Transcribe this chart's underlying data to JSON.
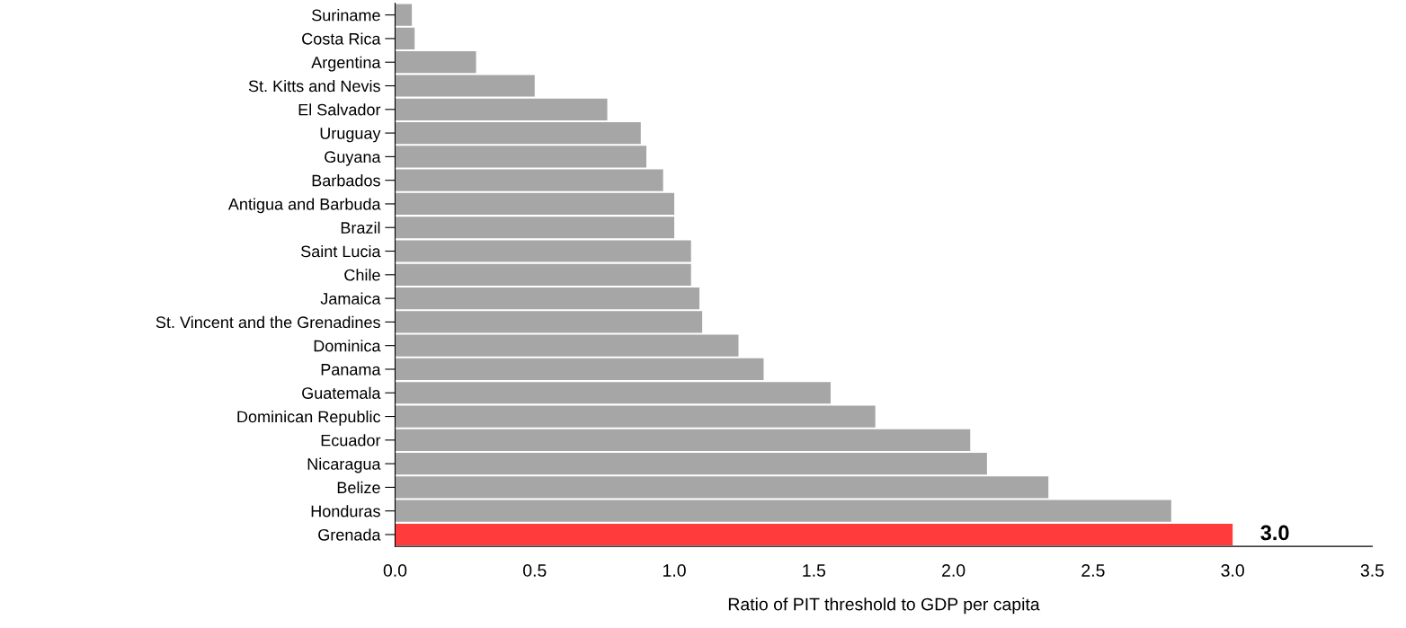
{
  "chart_data": {
    "type": "bar",
    "orientation": "horizontal",
    "xlabel": "Ratio of PIT threshold to GDP per capita",
    "categories": [
      "Suriname",
      "Costa Rica",
      "Argentina",
      "St. Kitts and Nevis",
      "El Salvador",
      "Uruguay",
      "Guyana",
      "Barbados",
      "Antigua and Barbuda",
      "Brazil",
      "Saint Lucia",
      "Chile",
      "Jamaica",
      "St. Vincent and the Grenadines",
      "Dominica",
      "Panama",
      "Guatemala",
      "Dominican Republic",
      "Ecuador",
      "Nicaragua",
      "Belize",
      "Honduras",
      "Grenada"
    ],
    "values": [
      0.06,
      0.07,
      0.29,
      0.5,
      0.76,
      0.88,
      0.9,
      0.96,
      1.0,
      1.0,
      1.06,
      1.06,
      1.09,
      1.1,
      1.23,
      1.32,
      1.56,
      1.72,
      2.06,
      2.12,
      2.34,
      2.78,
      3.0
    ],
    "colors": [
      "#a6a6a6",
      "#a6a6a6",
      "#a6a6a6",
      "#a6a6a6",
      "#a6a6a6",
      "#a6a6a6",
      "#a6a6a6",
      "#a6a6a6",
      "#a6a6a6",
      "#a6a6a6",
      "#a6a6a6",
      "#a6a6a6",
      "#a6a6a6",
      "#a6a6a6",
      "#a6a6a6",
      "#a6a6a6",
      "#a6a6a6",
      "#a6a6a6",
      "#a6a6a6",
      "#a6a6a6",
      "#a6a6a6",
      "#a6a6a6",
      "#ff3b3b"
    ],
    "value_labels": [
      null,
      null,
      null,
      null,
      null,
      null,
      null,
      null,
      null,
      null,
      null,
      null,
      null,
      null,
      null,
      null,
      null,
      null,
      null,
      null,
      null,
      null,
      "3.0"
    ],
    "xlim": [
      0,
      3.5
    ],
    "xticks": [
      {
        "value": 0,
        "label": "0.0"
      },
      {
        "value": 0.5,
        "label": "0.5"
      },
      {
        "value": 1,
        "label": "1.0"
      },
      {
        "value": 1.5,
        "label": "1.5"
      },
      {
        "value": 2,
        "label": "2.0"
      },
      {
        "value": 2.5,
        "label": "2.5"
      },
      {
        "value": 3,
        "label": "3.0"
      },
      {
        "value": 3.5,
        "label": "3.5"
      }
    ],
    "grid": false
  }
}
